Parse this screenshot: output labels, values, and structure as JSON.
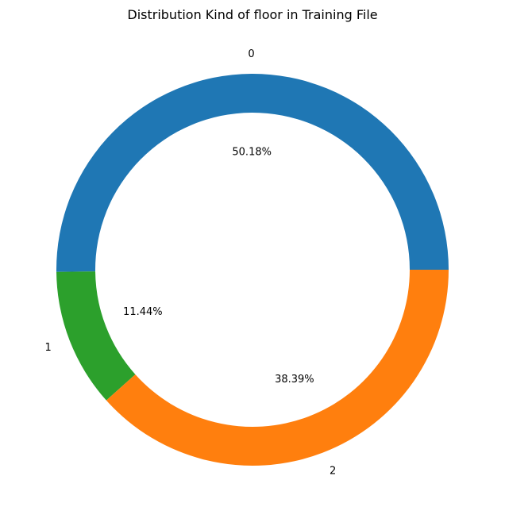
{
  "chart_data": {
    "type": "pie",
    "style": "donut",
    "title": "Distribution Kind of floor in Training File",
    "categories": [
      "0",
      "1",
      "2"
    ],
    "values": [
      50.18,
      11.44,
      38.39
    ],
    "percent_labels": [
      "50.18%",
      "11.44%",
      "38.39%"
    ],
    "colors": [
      "#1f77b4",
      "#2ca02c",
      "#ff7f0e"
    ],
    "start_angle_deg": 0,
    "direction": "counterclockwise"
  }
}
